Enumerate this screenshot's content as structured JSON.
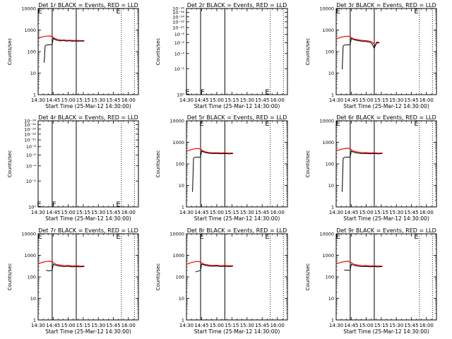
{
  "figure": {
    "xlabel": "Start Time (25-Mar-12 14:30:00)",
    "ylabel": "Counts/sec"
  },
  "chart_data": [
    {
      "type": "line",
      "title": "Det 1r BLACK = Events, RED = LLD",
      "yscale": "log",
      "ylim": [
        1,
        10000
      ],
      "yticks": [
        {
          "v": 1,
          "t": "1"
        },
        {
          "v": 10,
          "t": "10"
        },
        {
          "v": 100,
          "t": "100"
        },
        {
          "v": 1000,
          "t": "1000"
        },
        {
          "v": 10000,
          "t": "10000"
        }
      ],
      "xlim": [
        "14:30",
        "16:10"
      ],
      "xticks": [
        "14:30",
        "14:45",
        "15:00",
        "15:15",
        "15:30",
        "15:45",
        "16:00"
      ],
      "solid_vlines": [
        "14:44",
        "15:08"
      ],
      "dotted_vlines": [
        "15:53",
        "16:06"
      ],
      "markers": [
        {
          "label": "E",
          "x": "14:32",
          "y": 10000
        },
        {
          "label": "E",
          "x": "15:50",
          "y": 10000
        }
      ],
      "series": [
        {
          "color": "#ff0000",
          "x": [
            "14:30",
            "14:34",
            "14:38",
            "14:42",
            "14:44",
            "14:46",
            "14:48",
            "14:50",
            "14:53",
            "14:56",
            "14:59",
            "15:02",
            "15:05",
            "15:08",
            "15:12",
            "15:16"
          ],
          "y": [
            420,
            480,
            520,
            530,
            500,
            420,
            380,
            360,
            340,
            345,
            330,
            335,
            325,
            330,
            320,
            325
          ]
        },
        {
          "color": "#000000",
          "x": [
            "14:36",
            "14:37",
            "14:38",
            "14:41",
            "14:44",
            "14:45",
            "14:47",
            "14:49",
            "14:52",
            "14:55",
            "14:58",
            "15:01",
            "15:04",
            "15:07",
            "15:10",
            "15:13",
            "15:16"
          ],
          "y": [
            30,
            180,
            200,
            210,
            210,
            410,
            360,
            330,
            310,
            330,
            305,
            320,
            300,
            310,
            300,
            310,
            305
          ]
        }
      ]
    },
    {
      "type": "line",
      "title": "Det 2r BLACK = Events, RED = LLD",
      "yscale": "log",
      "ylim": [
        1e-10,
        1e-09
      ],
      "yticks": [
        {
          "v": 1e-10,
          "t": "10⁰"
        },
        {
          "v": 2e-10,
          "t": "10⁻²"
        },
        {
          "v": 3e-10,
          "t": "10⁻⁴"
        },
        {
          "v": 4e-10,
          "t": "10⁻⁶"
        },
        {
          "v": 5e-10,
          "t": "10⁻⁸"
        },
        {
          "v": 6e-10,
          "t": "10⁻¹⁰"
        },
        {
          "v": 7e-10,
          "t": "10⁻¹²"
        },
        {
          "v": 8e-10,
          "t": "10⁻¹⁴"
        },
        {
          "v": 9e-10,
          "t": "10⁻¹⁶"
        },
        {
          "v": 1e-09,
          "t": "10⁻¹⁸"
        }
      ],
      "xlim": [
        "14:30",
        "16:10"
      ],
      "xticks": [
        "14:30",
        "14:45",
        "15:00",
        "15:15",
        "15:30",
        "15:45",
        "16:00"
      ],
      "solid_vlines": [
        "14:44",
        "15:08"
      ],
      "dotted_vlines": [
        "15:53",
        "16:06"
      ],
      "markers": [
        {
          "label": "E",
          "x": "14:31",
          "y": 1.15e-10
        },
        {
          "label": "F",
          "x": "14:46",
          "y": 1.15e-10
        },
        {
          "label": "E",
          "x": "15:50",
          "y": 1.15e-10
        }
      ],
      "series": []
    },
    {
      "type": "line",
      "title": "Det 3r BLACK = Events, RED = LLD",
      "yscale": "log",
      "ylim": [
        1,
        10000
      ],
      "yticks": [
        {
          "v": 1,
          "t": "1"
        },
        {
          "v": 10,
          "t": "10"
        },
        {
          "v": 100,
          "t": "100"
        },
        {
          "v": 1000,
          "t": "1000"
        },
        {
          "v": 10000,
          "t": "10000"
        }
      ],
      "xlim": [
        "14:30",
        "16:10"
      ],
      "xticks": [
        "14:30",
        "14:45",
        "15:00",
        "15:15",
        "15:30",
        "15:45",
        "16:00"
      ],
      "solid_vlines": [
        "14:44",
        "15:08"
      ],
      "dotted_vlines": [
        "15:53",
        "16:06"
      ],
      "markers": [
        {
          "label": "E",
          "x": "14:32",
          "y": 10000
        },
        {
          "label": "E",
          "x": "15:50",
          "y": 10000
        }
      ],
      "series": [
        {
          "color": "#ff0000",
          "x": [
            "14:30",
            "14:34",
            "14:38",
            "14:42",
            "14:44",
            "14:46",
            "14:48",
            "14:52",
            "14:56",
            "15:00",
            "15:04",
            "15:07",
            "15:09",
            "15:11",
            "15:13"
          ],
          "y": [
            380,
            450,
            500,
            520,
            480,
            420,
            380,
            350,
            330,
            320,
            300,
            250,
            190,
            280,
            260
          ]
        },
        {
          "color": "#000000",
          "x": [
            "14:36",
            "14:37",
            "14:38",
            "14:41",
            "14:44",
            "14:45",
            "14:48",
            "14:52",
            "14:56",
            "15:00",
            "15:04",
            "15:06",
            "15:08",
            "15:10",
            "15:12",
            "15:13"
          ],
          "y": [
            15,
            180,
            200,
            205,
            205,
            400,
            350,
            320,
            300,
            290,
            270,
            220,
            140,
            260,
            250,
            255
          ]
        }
      ]
    },
    {
      "type": "line",
      "title": "Det 4r BLACK = Events, RED = LLD",
      "yscale": "log",
      "ylim": [
        1e-10,
        1e-09
      ],
      "yticks": [
        {
          "v": 1e-10,
          "t": "10⁰"
        },
        {
          "v": 2e-10,
          "t": "10⁻²"
        },
        {
          "v": 3e-10,
          "t": "10⁻⁴"
        },
        {
          "v": 4e-10,
          "t": "10⁻⁶"
        },
        {
          "v": 5e-10,
          "t": "10⁻⁸"
        },
        {
          "v": 6e-10,
          "t": "10⁻¹⁰"
        },
        {
          "v": 7e-10,
          "t": "10⁻¹²"
        },
        {
          "v": 8e-10,
          "t": "10⁻¹⁴"
        },
        {
          "v": 9e-10,
          "t": "10⁻¹⁶"
        },
        {
          "v": 1e-09,
          "t": "10⁻¹⁸"
        }
      ],
      "xlim": [
        "14:30",
        "16:10"
      ],
      "xticks": [
        "14:30",
        "14:45",
        "15:00",
        "15:15",
        "15:30",
        "15:45",
        "16:00"
      ],
      "solid_vlines": [
        "14:44",
        "15:08"
      ],
      "dotted_vlines": [
        "15:53",
        "16:06"
      ],
      "markers": [
        {
          "label": "E",
          "x": "14:31",
          "y": 1.15e-10
        },
        {
          "label": "F",
          "x": "14:46",
          "y": 1.15e-10
        },
        {
          "label": "E",
          "x": "15:50",
          "y": 1.15e-10
        }
      ],
      "series": []
    },
    {
      "type": "line",
      "title": "Det 5r BLACK = Events, RED = LLD",
      "yscale": "log",
      "ylim": [
        1,
        10000
      ],
      "yticks": [
        {
          "v": 1,
          "t": "1"
        },
        {
          "v": 10,
          "t": "10"
        },
        {
          "v": 100,
          "t": "100"
        },
        {
          "v": 1000,
          "t": "1000"
        },
        {
          "v": 10000,
          "t": "10000"
        }
      ],
      "xlim": [
        "14:30",
        "16:10"
      ],
      "xticks": [
        "14:30",
        "14:45",
        "15:00",
        "15:15",
        "15:30",
        "15:45",
        "16:00"
      ],
      "solid_vlines": [
        "14:44",
        "15:08"
      ],
      "dotted_vlines": [
        "15:53",
        "16:06"
      ],
      "markers": [
        {
          "label": "E",
          "x": "14:45",
          "y": 10000
        },
        {
          "label": "E",
          "x": "15:50",
          "y": 10000
        }
      ],
      "series": [
        {
          "color": "#ff0000",
          "x": [
            "14:30",
            "14:34",
            "14:38",
            "14:42",
            "14:44",
            "14:46",
            "14:48",
            "14:52",
            "14:56",
            "15:00",
            "15:04",
            "15:08",
            "15:12",
            "15:16"
          ],
          "y": [
            380,
            450,
            500,
            520,
            480,
            410,
            370,
            340,
            325,
            330,
            320,
            325,
            315,
            320
          ]
        },
        {
          "color": "#000000",
          "x": [
            "14:36",
            "14:37",
            "14:38",
            "14:41",
            "14:44",
            "14:45",
            "14:48",
            "14:52",
            "14:56",
            "15:00",
            "15:04",
            "15:08",
            "15:12",
            "15:16"
          ],
          "y": [
            5,
            180,
            200,
            205,
            205,
            390,
            340,
            310,
            300,
            305,
            295,
            300,
            290,
            300
          ]
        }
      ]
    },
    {
      "type": "line",
      "title": "Det 6r BLACK = Events, RED = LLD",
      "yscale": "log",
      "ylim": [
        1,
        10000
      ],
      "yticks": [
        {
          "v": 1,
          "t": "1"
        },
        {
          "v": 10,
          "t": "10"
        },
        {
          "v": 100,
          "t": "100"
        },
        {
          "v": 1000,
          "t": "1000"
        },
        {
          "v": 10000,
          "t": "10000"
        }
      ],
      "xlim": [
        "14:30",
        "16:10"
      ],
      "xticks": [
        "14:30",
        "14:45",
        "15:00",
        "15:15",
        "15:30",
        "15:45",
        "16:00"
      ],
      "solid_vlines": [
        "14:44",
        "15:08"
      ],
      "dotted_vlines": [
        "15:53",
        "16:06"
      ],
      "markers": [
        {
          "label": "E",
          "x": "14:32",
          "y": 10000
        },
        {
          "label": "E",
          "x": "15:50",
          "y": 10000
        }
      ],
      "series": [
        {
          "color": "#ff0000",
          "x": [
            "14:30",
            "14:34",
            "14:38",
            "14:42",
            "14:44",
            "14:46",
            "14:48",
            "14:52",
            "14:56",
            "15:00",
            "15:04",
            "15:08",
            "15:12",
            "15:16"
          ],
          "y": [
            400,
            460,
            510,
            530,
            490,
            420,
            380,
            350,
            330,
            335,
            320,
            325,
            315,
            320
          ]
        },
        {
          "color": "#000000",
          "x": [
            "14:36",
            "14:37",
            "14:38",
            "14:41",
            "14:44",
            "14:45",
            "14:48",
            "14:52",
            "14:56",
            "15:00",
            "15:04",
            "15:08",
            "15:12",
            "15:16"
          ],
          "y": [
            5,
            180,
            200,
            205,
            205,
            390,
            340,
            310,
            300,
            305,
            295,
            300,
            290,
            300
          ]
        }
      ]
    },
    {
      "type": "line",
      "title": "Det 7r BLACK = Events, RED = LLD",
      "yscale": "log",
      "ylim": [
        1,
        10000
      ],
      "yticks": [
        {
          "v": 1,
          "t": "1"
        },
        {
          "v": 10,
          "t": "10"
        },
        {
          "v": 100,
          "t": "100"
        },
        {
          "v": 1000,
          "t": "1000"
        },
        {
          "v": 10000,
          "t": "10000"
        }
      ],
      "xlim": [
        "14:30",
        "16:10"
      ],
      "xticks": [
        "14:30",
        "14:45",
        "15:00",
        "15:15",
        "15:30",
        "15:45",
        "16:00"
      ],
      "solid_vlines": [
        "14:44",
        "15:08"
      ],
      "dotted_vlines": [
        "15:53",
        "16:06"
      ],
      "markers": [
        {
          "label": "E",
          "x": "14:32",
          "y": 10000
        },
        {
          "label": "E",
          "x": "15:50",
          "y": 10000
        }
      ],
      "series": [
        {
          "color": "#ff0000",
          "x": [
            "14:30",
            "14:34",
            "14:38",
            "14:42",
            "14:44",
            "14:46",
            "14:48",
            "14:52",
            "14:56",
            "15:00",
            "15:04",
            "15:08",
            "15:12",
            "15:16"
          ],
          "y": [
            400,
            470,
            520,
            530,
            500,
            420,
            380,
            350,
            330,
            340,
            320,
            330,
            315,
            320
          ]
        },
        {
          "color": "#000000",
          "x": [
            "14:38",
            "14:41",
            "14:44",
            "14:45",
            "14:48",
            "14:52",
            "14:56",
            "15:00",
            "15:04",
            "15:08",
            "15:12",
            "15:16"
          ],
          "y": [
            200,
            190,
            200,
            380,
            340,
            310,
            300,
            310,
            290,
            300,
            290,
            300
          ]
        }
      ]
    },
    {
      "type": "line",
      "title": "Det 8r BLACK = Events, RED = LLD",
      "yscale": "log",
      "ylim": [
        1,
        10000
      ],
      "yticks": [
        {
          "v": 1,
          "t": "1"
        },
        {
          "v": 10,
          "t": "10"
        },
        {
          "v": 100,
          "t": "100"
        },
        {
          "v": 1000,
          "t": "1000"
        },
        {
          "v": 10000,
          "t": "10000"
        }
      ],
      "xlim": [
        "14:30",
        "16:10"
      ],
      "xticks": [
        "14:30",
        "14:45",
        "15:00",
        "15:15",
        "15:30",
        "15:45",
        "16:00"
      ],
      "solid_vlines": [
        "14:44",
        "15:08"
      ],
      "dotted_vlines": [
        "15:53",
        "16:06"
      ],
      "markers": [
        {
          "label": "E",
          "x": "14:45",
          "y": 10000
        },
        {
          "label": "E",
          "x": "15:50",
          "y": 10000
        }
      ],
      "series": [
        {
          "color": "#ff0000",
          "x": [
            "14:30",
            "14:34",
            "14:38",
            "14:42",
            "14:44",
            "14:46",
            "14:48",
            "14:52",
            "14:56",
            "15:00",
            "15:04",
            "15:08",
            "15:12",
            "15:16"
          ],
          "y": [
            380,
            450,
            500,
            520,
            480,
            420,
            380,
            350,
            340,
            345,
            330,
            340,
            325,
            330
          ]
        },
        {
          "color": "#000000",
          "x": [
            "14:39",
            "14:41",
            "14:44",
            "14:45",
            "14:48",
            "14:52",
            "14:56",
            "15:00",
            "15:04",
            "15:08",
            "15:12",
            "15:16"
          ],
          "y": [
            170,
            180,
            200,
            390,
            350,
            320,
            310,
            320,
            300,
            310,
            300,
            310
          ]
        }
      ]
    },
    {
      "type": "line",
      "title": "Det 9r BLACK = Events, RED = LLD",
      "yscale": "log",
      "ylim": [
        1,
        10000
      ],
      "yticks": [
        {
          "v": 1,
          "t": "1"
        },
        {
          "v": 10,
          "t": "10"
        },
        {
          "v": 100,
          "t": "100"
        },
        {
          "v": 1000,
          "t": "1000"
        },
        {
          "v": 10000,
          "t": "10000"
        }
      ],
      "xlim": [
        "14:30",
        "16:10"
      ],
      "xticks": [
        "14:30",
        "14:45",
        "15:00",
        "15:15",
        "15:30",
        "15:45",
        "16:00"
      ],
      "solid_vlines": [
        "14:44",
        "15:08"
      ],
      "dotted_vlines": [
        "15:53",
        "16:06"
      ],
      "markers": [
        {
          "label": "E",
          "x": "14:32",
          "y": 10000
        },
        {
          "label": "E",
          "x": "15:50",
          "y": 10000
        }
      ],
      "series": [
        {
          "color": "#ff0000",
          "x": [
            "14:30",
            "14:34",
            "14:38",
            "14:42",
            "14:44",
            "14:46",
            "14:48",
            "14:52",
            "14:56",
            "15:00",
            "15:04",
            "15:08",
            "15:12",
            "15:16"
          ],
          "y": [
            400,
            460,
            510,
            530,
            490,
            420,
            380,
            350,
            330,
            335,
            320,
            325,
            315,
            320
          ]
        },
        {
          "color": "#000000",
          "x": [
            "14:38",
            "14:41",
            "14:44",
            "14:45",
            "14:48",
            "14:52",
            "14:56",
            "15:00",
            "15:04",
            "15:08",
            "15:12",
            "15:16"
          ],
          "y": [
            210,
            200,
            205,
            380,
            340,
            310,
            300,
            305,
            290,
            300,
            290,
            300
          ]
        }
      ]
    }
  ]
}
